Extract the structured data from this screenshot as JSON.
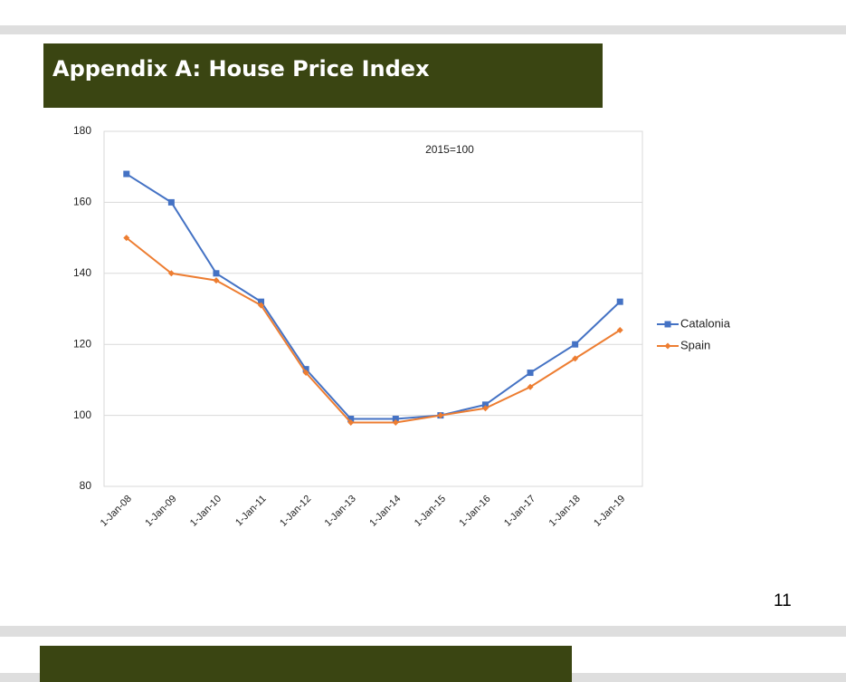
{
  "slide": {
    "title": "Appendix A: House Price Index",
    "page_number": "11"
  },
  "chart_data": {
    "type": "line",
    "annotation": "2015=100",
    "categories": [
      "1-Jan-08",
      "1-Jan-09",
      "1-Jan-10",
      "1-Jan-11",
      "1-Jan-12",
      "1-Jan-13",
      "1-Jan-14",
      "1-Jan-15",
      "1-Jan-16",
      "1-Jan-17",
      "1-Jan-18",
      "1-Jan-19"
    ],
    "series": [
      {
        "name": "Catalonia",
        "color": "#4472c4",
        "marker": "square",
        "values": [
          168,
          160,
          140,
          132,
          113,
          99,
          99,
          100,
          103,
          112,
          120,
          132
        ]
      },
      {
        "name": "Spain",
        "color": "#ed7d31",
        "marker": "diamond",
        "values": [
          150,
          140,
          138,
          131,
          112,
          98,
          98,
          100,
          102,
          108,
          116,
          124
        ]
      }
    ],
    "ylim": [
      80,
      180
    ],
    "yticks": [
      80,
      100,
      120,
      140,
      160,
      180
    ],
    "grid": true,
    "legend": "right"
  }
}
